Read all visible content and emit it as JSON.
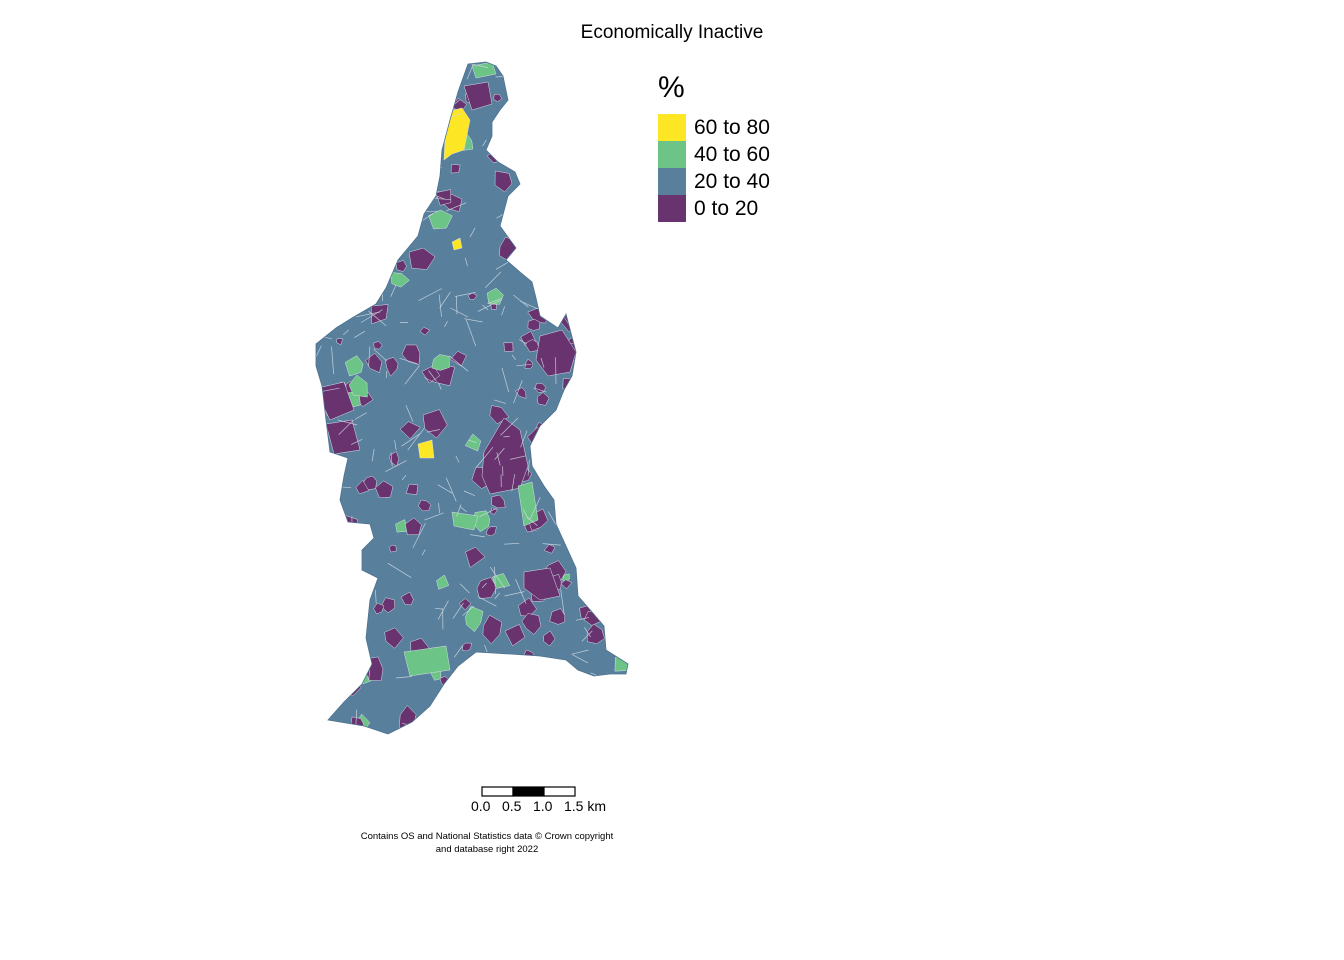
{
  "title": "Economically Inactive",
  "legend": {
    "title": "%",
    "items": [
      {
        "label": "60 to 80",
        "color": "#FDE725"
      },
      {
        "label": "40 to 60",
        "color": "#6CC586"
      },
      {
        "label": "20 to 40",
        "color": "#58809D"
      },
      {
        "label": "0 to 20",
        "color": "#68336F"
      }
    ]
  },
  "scalebar": {
    "labels": [
      "0.0",
      "0.5",
      "1.0",
      "1.5 km"
    ]
  },
  "attribution": "Contains OS and National Statistics data © Crown copyright and database right 2022"
}
